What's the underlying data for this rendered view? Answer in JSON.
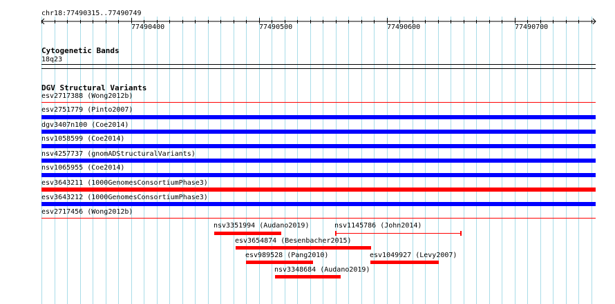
{
  "ruler": {
    "position_label": "chr18:77490315..77490749",
    "ticks": [
      "77490400",
      "77490500",
      "77490600",
      "77490700"
    ]
  },
  "cytoband": {
    "title": "Cytogenetic Bands",
    "band": "18q23"
  },
  "dgv": {
    "title": "DGV Structural Variants",
    "tracks": [
      {
        "label": "esv2717388 (Wong2012b)",
        "color": "#ff0000",
        "style": "thin"
      },
      {
        "label": "esv2751779 (Pinto2007)",
        "color": "#0000ff",
        "style": "thick"
      },
      {
        "label": "dgv3407n100 (Coe2014)",
        "color": "#0000ff",
        "style": "thick"
      },
      {
        "label": "nsv1058599 (Coe2014)",
        "color": "#0000ff",
        "style": "thick"
      },
      {
        "label": "nsv4257737 (gnomADStructuralVariants)",
        "color": "#0000ff",
        "style": "thick"
      },
      {
        "label": "nsv1065955 (Coe2014)",
        "color": "#0000ff",
        "style": "thick"
      },
      {
        "label": "esv3643211 (1000GenomesConsortiumPhase3)",
        "color": "#ff0000",
        "style": "thick"
      },
      {
        "label": "esv3643212 (1000GenomesConsortiumPhase3)",
        "color": "#0000ff",
        "style": "thick"
      },
      {
        "label": "esv2717456 (Wong2012b)",
        "color": "#ff0000",
        "style": "thin"
      }
    ],
    "features": [
      {
        "label": "nsv3351994 (Audano2019)"
      },
      {
        "label": "nsv1145786 (John2014)"
      },
      {
        "label": "esv3654874 (Besenbacher2015)"
      },
      {
        "label": "esv989528 (Pang2010)"
      },
      {
        "label": "esv1049927 (Levy2007)"
      },
      {
        "label": "nsv3348684 (Audano2019)"
      }
    ]
  },
  "colors": {
    "grid": "#a8dce8",
    "loss": "#ff0000",
    "gain": "#0000ff"
  }
}
